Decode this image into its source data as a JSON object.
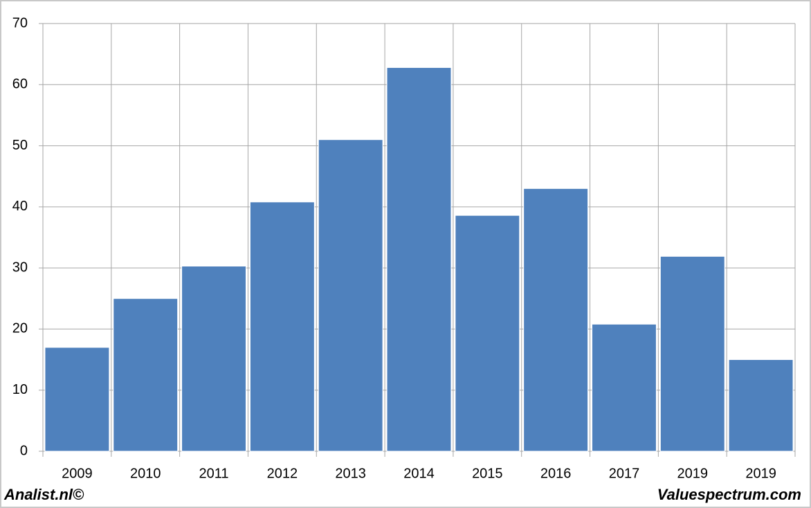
{
  "chart_data": {
    "type": "bar",
    "categories": [
      "2009",
      "2010",
      "2011",
      "2012",
      "2013",
      "2014",
      "2015",
      "2016",
      "2017",
      "2019",
      "2019"
    ],
    "values": [
      17,
      25,
      30.3,
      40.8,
      51,
      62.8,
      38.6,
      43,
      20.8,
      31.9,
      15
    ],
    "color": "#4f81bd",
    "ylim": [
      0,
      70
    ],
    "yticks": [
      0,
      10,
      20,
      30,
      40,
      50,
      60,
      70
    ],
    "grid": true,
    "source": "Analist.nl©",
    "credit": "Valuespectrum.com"
  }
}
